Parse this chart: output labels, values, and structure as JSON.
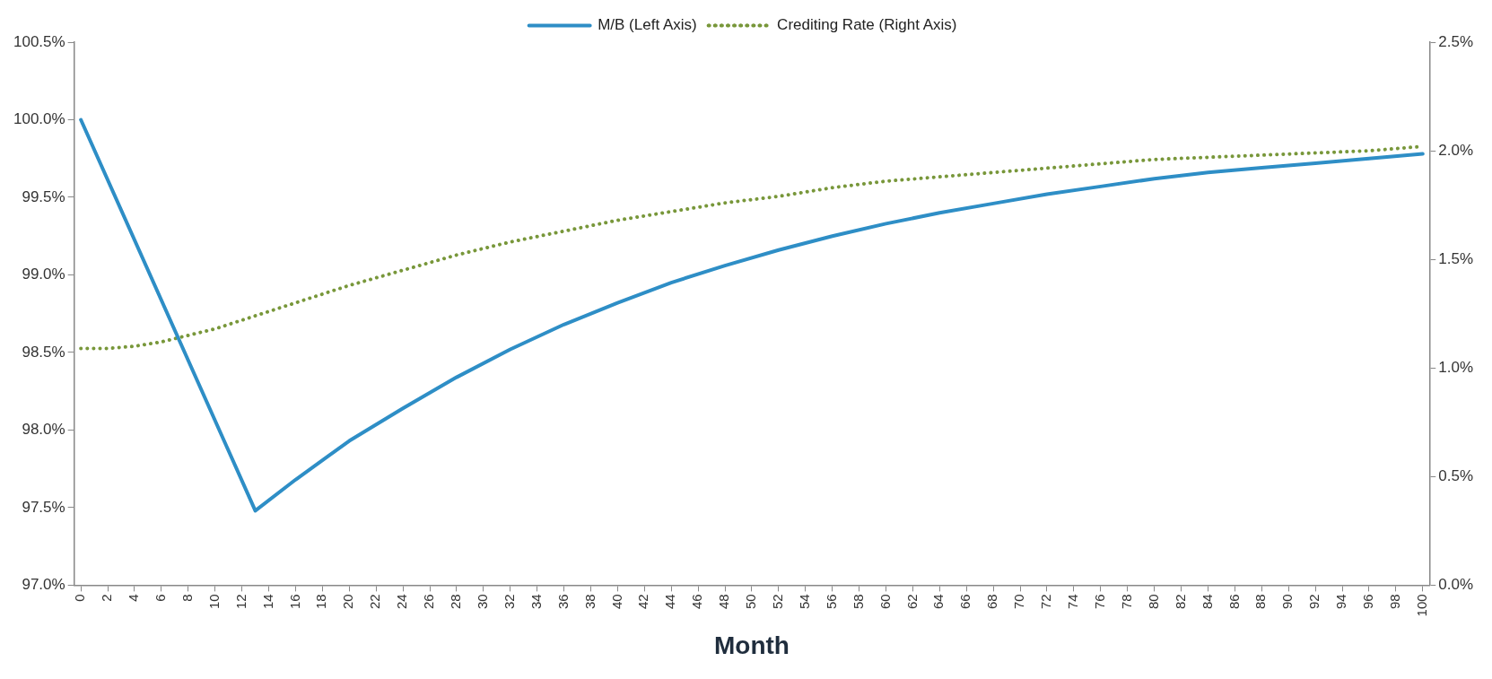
{
  "chart_data": {
    "type": "line",
    "xlabel": "Month",
    "legend": "top",
    "grid": false,
    "marker": "none",
    "xlim": [
      -0.5,
      100.5
    ],
    "xticks": [
      0,
      2,
      4,
      6,
      8,
      10,
      12,
      14,
      16,
      18,
      20,
      22,
      24,
      26,
      28,
      30,
      32,
      34,
      36,
      38,
      40,
      42,
      44,
      46,
      48,
      50,
      52,
      54,
      56,
      58,
      60,
      62,
      64,
      66,
      68,
      70,
      72,
      74,
      76,
      78,
      80,
      82,
      84,
      86,
      88,
      90,
      92,
      94,
      96,
      98,
      100
    ],
    "ylim": [
      97,
      100.5
    ],
    "yticks": [
      {
        "value": 97,
        "label": "97.0%"
      },
      {
        "value": 97.5,
        "label": "97.5%"
      },
      {
        "value": 98,
        "label": "98.0%"
      },
      {
        "value": 98.5,
        "label": "98.5%"
      },
      {
        "value": 99,
        "label": "99.0%"
      },
      {
        "value": 99.5,
        "label": "99.5%"
      },
      {
        "value": 100,
        "label": "100.0%"
      },
      {
        "value": 100.5,
        "label": "100.5%"
      }
    ],
    "y2lim": [
      0,
      2.5
    ],
    "y2ticks": [
      {
        "value": 0,
        "label": "0.0%"
      },
      {
        "value": 0.5,
        "label": "0.5%"
      },
      {
        "value": 1,
        "label": "1.0%"
      },
      {
        "value": 1.5,
        "label": "1.5%"
      },
      {
        "value": 2,
        "label": "2.0%"
      },
      {
        "value": 2.5,
        "label": "2.5%"
      }
    ],
    "series": [
      {
        "name": "M/B (Left Axis)",
        "color": "#2e8ec6",
        "line_style": "solid",
        "x": [
          0,
          13,
          16,
          20,
          24,
          28,
          32,
          36,
          40,
          44,
          48,
          52,
          56,
          60,
          64,
          68,
          72,
          76,
          80,
          84,
          88,
          92,
          96,
          100
        ],
        "values": [
          100,
          97.48,
          97.68,
          97.93,
          98.14,
          98.34,
          98.52,
          98.68,
          98.82,
          98.95,
          99.06,
          99.16,
          99.25,
          99.33,
          99.4,
          99.46,
          99.52,
          99.57,
          99.62,
          99.66,
          99.69,
          99.72,
          99.75,
          99.78
        ]
      },
      {
        "name": "Crediting Rate (Right Axis)",
        "color": "#78973a",
        "line_style": "dotted",
        "axis": "y2",
        "x": [
          0,
          2,
          4,
          6,
          8,
          10,
          12,
          14,
          16,
          18,
          20,
          24,
          28,
          32,
          36,
          40,
          44,
          48,
          52,
          56,
          60,
          64,
          68,
          72,
          76,
          80,
          84,
          88,
          92,
          96,
          100
        ],
        "values": [
          1.09,
          1.09,
          1.1,
          1.12,
          1.15,
          1.18,
          1.22,
          1.26,
          1.3,
          1.34,
          1.38,
          1.45,
          1.52,
          1.58,
          1.63,
          1.68,
          1.72,
          1.76,
          1.79,
          1.83,
          1.86,
          1.88,
          1.9,
          1.92,
          1.94,
          1.96,
          1.97,
          1.98,
          1.99,
          2.0,
          2.02
        ]
      }
    ]
  }
}
